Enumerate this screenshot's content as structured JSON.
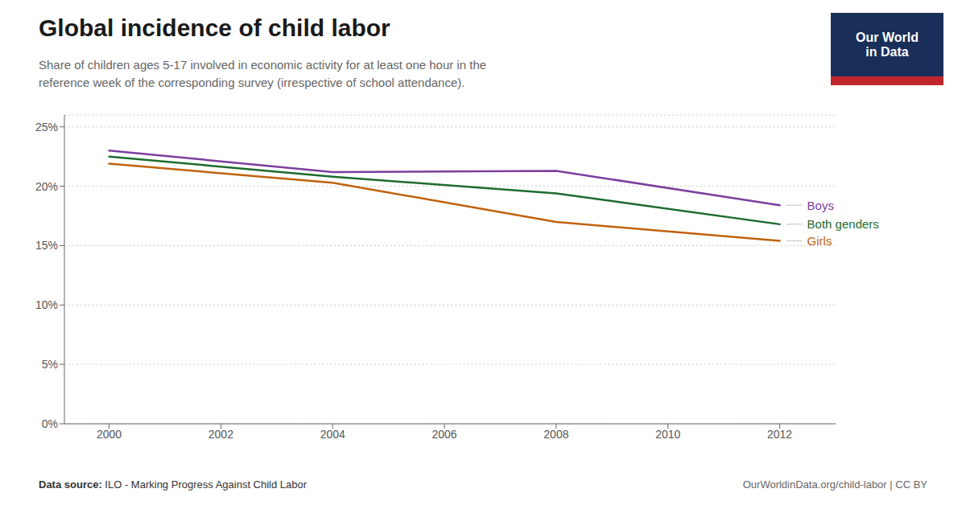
{
  "chart_data": {
    "type": "line",
    "title": "Global incidence of child labor",
    "subtitle": "Share of children ages 5-17 involved in economic activity for at least one hour in the\nreference week of the corresponding survey (irrespective of school attendance).",
    "annotations": [
      "Data source: ILO - Marking Progress Against Child Labor",
      "OurWorldinData.org/child-labor | CC BY",
      "Our World",
      "in Data"
    ],
    "x": [
      2000,
      2004,
      2008,
      2012
    ],
    "series": [
      {
        "name": "Boys",
        "color": "#7B3F9E",
        "values": [
          23.0,
          21.2,
          21.3,
          18.4
        ]
      },
      {
        "name": "Both genders",
        "color": "#1D6B2E",
        "values": [
          22.5,
          20.8,
          19.4,
          16.8
        ]
      },
      {
        "name": "Girls",
        "color": "#C0620D",
        "values": [
          21.9,
          20.3,
          17.0,
          15.4
        ]
      }
    ],
    "xlim": [
      1999.2,
      2013.0
    ],
    "xticks": [
      2000,
      2002,
      2004,
      2006,
      2008,
      2010,
      2012
    ],
    "ylim": [
      0,
      26
    ],
    "yticks": [
      {
        "value": 0,
        "label": "0%"
      },
      {
        "value": 5,
        "label": "5%"
      },
      {
        "value": 10,
        "label": "10%"
      },
      {
        "value": 15,
        "label": "15%"
      },
      {
        "value": 20,
        "label": "20%"
      },
      {
        "value": 25,
        "label": "25%"
      }
    ],
    "grid": true
  }
}
